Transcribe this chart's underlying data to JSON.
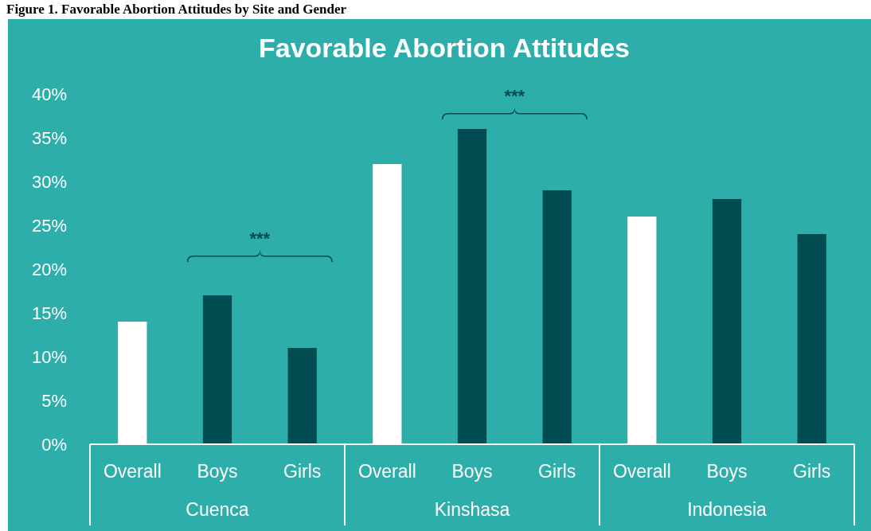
{
  "chart_data": {
    "type": "bar",
    "title": "Favorable Abortion Attitudes",
    "categories": [
      "Overall",
      "Boys",
      "Girls",
      "Overall",
      "Boys",
      "Girls",
      "Overall",
      "Boys",
      "Girls"
    ],
    "values": [
      14,
      17,
      11,
      32,
      36,
      29,
      26,
      28,
      24
    ],
    "colors": [
      "#ffffff",
      "#004c50",
      "#004c50",
      "#ffffff",
      "#004c50",
      "#004c50",
      "#ffffff",
      "#004c50",
      "#004c50"
    ],
    "ylim": [
      0,
      40
    ],
    "yticks": [
      {
        "value": 0,
        "label": "0%"
      },
      {
        "value": 5,
        "label": "5%"
      },
      {
        "value": 10,
        "label": "10%"
      },
      {
        "value": 15,
        "label": "15%"
      },
      {
        "value": 20,
        "label": "20%"
      },
      {
        "value": 25,
        "label": "25%"
      },
      {
        "value": 30,
        "label": "30%"
      },
      {
        "value": 35,
        "label": "35%"
      },
      {
        "value": 40,
        "label": "40%"
      }
    ],
    "grid": false,
    "annotations": [
      "Figure 1. Favorable Abortion Attitudes by Site and Gender",
      "***",
      "***",
      "Cuenca",
      "Kinshasa",
      "Indonesia"
    ]
  }
}
